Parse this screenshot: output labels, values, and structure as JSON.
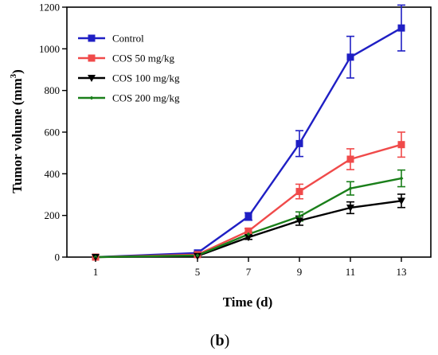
{
  "chart_data": {
    "type": "line",
    "title": "",
    "xlabel": "Time (d)",
    "ylabel": "Tumor volume (mm",
    "ylabel_sup": "3",
    "ylabel_close": ")",
    "x": [
      1,
      5,
      7,
      9,
      11,
      13
    ],
    "x_tick_labels": [
      "1",
      "5",
      "7",
      "9",
      "11",
      "13"
    ],
    "ylim": [
      0,
      1200
    ],
    "y_ticks": [
      0,
      200,
      400,
      600,
      800,
      1000,
      1200
    ],
    "y_tick_labels": [
      "0",
      "200",
      "400",
      "600",
      "800",
      "1000",
      "1200"
    ],
    "grid": false,
    "legend_position": "top-left",
    "series": [
      {
        "name": "Control",
        "color": "#1f1fc4",
        "marker": "square",
        "values": [
          0,
          20,
          195,
          545,
          960,
          1100
        ],
        "errors": [
          0,
          5,
          18,
          62,
          100,
          110
        ]
      },
      {
        "name": "COS 50 mg/kg",
        "color": "#f04a4a",
        "marker": "square",
        "values": [
          0,
          12,
          125,
          315,
          470,
          540
        ],
        "errors": [
          0,
          4,
          12,
          35,
          50,
          60
        ]
      },
      {
        "name": "COS 100 mg/kg",
        "color": "#000000",
        "marker": "triangle-down",
        "values": [
          0,
          5,
          95,
          175,
          237,
          270
        ],
        "errors": [
          0,
          3,
          10,
          22,
          28,
          32
        ]
      },
      {
        "name": "COS  200 mg/kg",
        "color": "#1a7f1a",
        "marker": "diamond",
        "values": [
          0,
          8,
          110,
          195,
          330,
          378
        ],
        "errors": [
          0,
          3,
          10,
          22,
          32,
          40
        ]
      }
    ]
  },
  "panel_label": {
    "open": "(",
    "letter": "b",
    "close": ")"
  }
}
